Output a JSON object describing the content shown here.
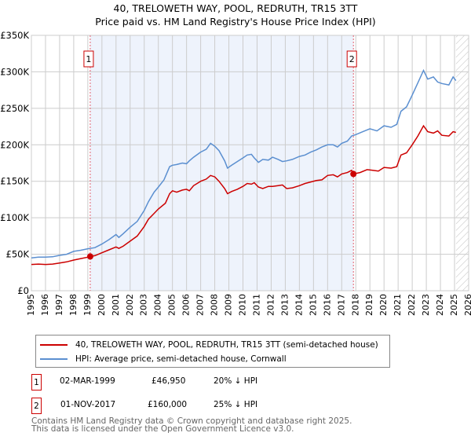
{
  "chart_data": {
    "type": "line",
    "title": "40, TRELOWETH WAY, POOL, REDRUTH, TR15 3TT",
    "subtitle": "Price paid vs. HM Land Registry's House Price Index (HPI)",
    "xlim": [
      1995,
      2026
    ],
    "ylim": [
      0,
      350000
    ],
    "yticks": [
      {
        "v": 0,
        "label": "£0"
      },
      {
        "v": 50000,
        "label": "£50K"
      },
      {
        "v": 100000,
        "label": "£100K"
      },
      {
        "v": 150000,
        "label": "£150K"
      },
      {
        "v": 200000,
        "label": "£200K"
      },
      {
        "v": 250000,
        "label": "£250K"
      },
      {
        "v": 300000,
        "label": "£300K"
      },
      {
        "v": 350000,
        "label": "£350K"
      }
    ],
    "xticks": [
      "1995",
      "1996",
      "1997",
      "1998",
      "1999",
      "2000",
      "2001",
      "2002",
      "2003",
      "2004",
      "2005",
      "2006",
      "2007",
      "2008",
      "2009",
      "2010",
      "2011",
      "2012",
      "2013",
      "2014",
      "2015",
      "2016",
      "2017",
      "2018",
      "2019",
      "2020",
      "2021",
      "2022",
      "2023",
      "2024",
      "2025",
      "2026"
    ],
    "grid": true,
    "shaded_range": [
      1999.17,
      2017.83
    ],
    "hatched_from": 2025.1,
    "series": [
      {
        "name": "40, TRELOWETH WAY, POOL, REDRUTH, TR15 3TT (semi-detached house)",
        "color": "#cc0000",
        "x": [
          1995,
          1995.5,
          1996,
          1996.5,
          1997,
          1997.5,
          1998,
          1998.5,
          1999,
          1999.17,
          1999.5,
          2000,
          2000.5,
          2001,
          2001.2,
          2001.5,
          2002,
          2002.5,
          2003,
          2003.3,
          2003.7,
          2004,
          2004.5,
          2004.8,
          2005,
          2005.3,
          2005.7,
          2006,
          2006.2,
          2006.5,
          2007,
          2007.4,
          2007.7,
          2008,
          2008.3,
          2008.7,
          2008.9,
          2009.2,
          2009.6,
          2010,
          2010.3,
          2010.6,
          2010.8,
          2011.1,
          2011.4,
          2011.8,
          2012.1,
          2012.5,
          2012.8,
          2013.1,
          2013.5,
          2014,
          2014.4,
          2014.8,
          2015.2,
          2015.6,
          2016,
          2016.4,
          2016.7,
          2017,
          2017.4,
          2017.7,
          2017.83,
          2018.3,
          2018.8,
          2019.2,
          2019.6,
          2020,
          2020.5,
          2020.9,
          2021.2,
          2021.6,
          2022,
          2022.4,
          2022.8,
          2023.1,
          2023.5,
          2023.8,
          2024.1,
          2024.6,
          2024.9,
          2025.1
        ],
        "y": [
          36000,
          36500,
          36000,
          36500,
          38000,
          39500,
          42000,
          44000,
          46000,
          46950,
          48000,
          52000,
          56000,
          60000,
          58000,
          61000,
          68000,
          75000,
          88000,
          98000,
          106000,
          112000,
          120000,
          133000,
          137000,
          135000,
          138000,
          139000,
          137000,
          144000,
          150000,
          153000,
          158000,
          156000,
          150000,
          140000,
          133000,
          136000,
          139000,
          143000,
          147000,
          146000,
          148000,
          142000,
          140000,
          143000,
          143000,
          144000,
          145000,
          140000,
          141000,
          144000,
          147000,
          149000,
          151000,
          152000,
          158000,
          159000,
          156000,
          160000,
          162000,
          165000,
          160000,
          162000,
          166000,
          165000,
          164000,
          169000,
          168000,
          170000,
          186000,
          189000,
          200000,
          212000,
          226000,
          218000,
          216000,
          219000,
          213000,
          212000,
          218000,
          217000
        ]
      },
      {
        "name": "HPI: Average price, semi-detached house, Cornwall",
        "color": "#5b8fd0",
        "x": [
          1995,
          1995.5,
          1996,
          1996.5,
          1997,
          1997.5,
          1998,
          1998.5,
          1999,
          1999.5,
          2000,
          2000.5,
          2001,
          2001.2,
          2001.5,
          2002,
          2002.5,
          2003,
          2003.3,
          2003.7,
          2004,
          2004.4,
          2004.8,
          2005,
          2005.3,
          2005.7,
          2006,
          2006.2,
          2006.5,
          2007,
          2007.4,
          2007.7,
          2008,
          2008.3,
          2008.7,
          2008.9,
          2009.2,
          2009.6,
          2010,
          2010.3,
          2010.6,
          2010.8,
          2011.1,
          2011.4,
          2011.8,
          2012.1,
          2012.5,
          2012.8,
          2013.1,
          2013.5,
          2014,
          2014.4,
          2014.8,
          2015.2,
          2015.6,
          2016,
          2016.4,
          2016.7,
          2017,
          2017.4,
          2017.7,
          2018,
          2018.5,
          2019,
          2019.5,
          2020,
          2020.5,
          2020.9,
          2021.2,
          2021.6,
          2022,
          2022.4,
          2022.8,
          2023.1,
          2023.5,
          2023.8,
          2024.1,
          2024.6,
          2024.9,
          2025.1
        ],
        "y": [
          45000,
          46000,
          46000,
          46500,
          48500,
          50000,
          54000,
          55500,
          57500,
          59000,
          64000,
          70000,
          77000,
          73000,
          78000,
          87000,
          95000,
          110000,
          122000,
          135000,
          142000,
          152000,
          170000,
          172000,
          173000,
          175000,
          174000,
          178000,
          183000,
          190000,
          194000,
          202000,
          198000,
          192000,
          178000,
          168000,
          172000,
          177000,
          182000,
          186000,
          187000,
          182000,
          176000,
          180000,
          179000,
          183000,
          180000,
          177000,
          178000,
          180000,
          184000,
          186000,
          190000,
          193000,
          197000,
          200000,
          200000,
          197000,
          202000,
          205000,
          212000,
          214000,
          218000,
          222000,
          219000,
          226000,
          224000,
          228000,
          246000,
          252000,
          268000,
          285000,
          302000,
          290000,
          293000,
          286000,
          284000,
          282000,
          293000,
          288000
        ]
      }
    ],
    "markers": [
      {
        "label": "1",
        "x": 1999.17,
        "y": 46950
      },
      {
        "label": "2",
        "x": 2017.83,
        "y": 160000
      }
    ]
  },
  "legend": [
    {
      "label": "40, TRELOWETH WAY, POOL, REDRUTH, TR15 3TT (semi-detached house)",
      "color": "#cc0000"
    },
    {
      "label": "HPI: Average price, semi-detached house, Cornwall",
      "color": "#5b8fd0"
    }
  ],
  "transactions": [
    {
      "num": "1",
      "date": "02-MAR-1999",
      "price": "£46,950",
      "hpi": "20% ↓ HPI"
    },
    {
      "num": "2",
      "date": "01-NOV-2017",
      "price": "£160,000",
      "hpi": "25% ↓ HPI"
    }
  ],
  "footer": {
    "line1": "Contains HM Land Registry data © Crown copyright and database right 2025.",
    "line2": "This data is licensed under the Open Government Licence v3.0."
  }
}
